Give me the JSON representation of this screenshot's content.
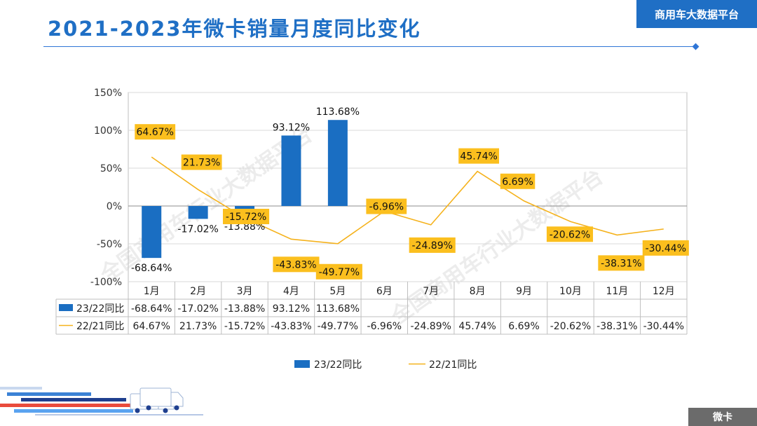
{
  "slide": {
    "title": "2021-2023年微卡销量月度同比变化",
    "brand": "商用车大数据平台",
    "category": "微卡",
    "watermark": "全国商用车行业大数据平台",
    "colors": {
      "accent": "#1f6fc5",
      "bar": "#1a6ec2",
      "line": "#f5b21c",
      "label_bg": "#fbbf1e"
    }
  },
  "chart_data": {
    "type": "bar",
    "categories": [
      "1月",
      "2月",
      "3月",
      "4月",
      "5月",
      "6月",
      "7月",
      "8月",
      "9月",
      "10月",
      "11月",
      "12月"
    ],
    "ylim": [
      -100,
      150
    ],
    "yticks": [
      "-100%",
      "-50%",
      "0%",
      "50%",
      "100%",
      "150%"
    ],
    "ytick_values": [
      -100,
      -50,
      0,
      50,
      100,
      150
    ],
    "grid": true,
    "legend_position": "bottom",
    "series": [
      {
        "name": "23/22同比",
        "render": "bar",
        "color": "#1a6ec2",
        "values": [
          -68.64,
          -17.02,
          -13.88,
          93.12,
          113.68,
          null,
          null,
          null,
          null,
          null,
          null,
          null
        ],
        "labels": [
          "-68.64%",
          "-17.02%",
          "-13.88%",
          "93.12%",
          "113.68%",
          "",
          "",
          "",
          "",
          "",
          "",
          ""
        ]
      },
      {
        "name": "22/21同比",
        "render": "line",
        "color": "#f5b21c",
        "values": [
          64.67,
          21.73,
          -15.72,
          -43.83,
          -49.77,
          -6.96,
          -24.89,
          45.74,
          6.69,
          -20.62,
          -38.31,
          -30.44
        ],
        "labels": [
          "64.67%",
          "21.73%",
          "-15.72%",
          "-43.83%",
          "-49.77%",
          "-6.96%",
          "-24.89%",
          "45.74%",
          "6.69%",
          "-20.62%",
          "-38.31%",
          "-30.44%"
        ]
      }
    ]
  }
}
